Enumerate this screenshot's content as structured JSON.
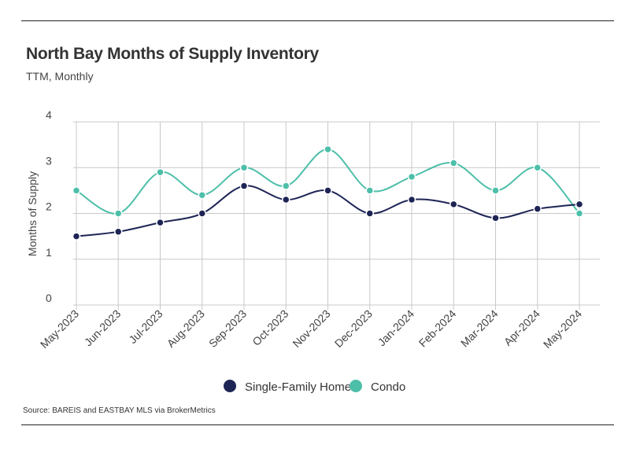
{
  "title": "North Bay Months of Supply Inventory",
  "subtitle": "TTM, Monthly",
  "source": "Source:  BAREIS and EASTBAY MLS via BrokerMetrics",
  "chart_data": {
    "type": "line",
    "title": "North Bay Months of Supply Inventory",
    "subtitle": "TTM, Monthly",
    "xlabel": "",
    "ylabel": "Months of Supply",
    "ylim": [
      0,
      4
    ],
    "yticks": [
      "0",
      "1",
      "2",
      "3",
      "4"
    ],
    "grid": true,
    "smooth": true,
    "legend_position": "bottom",
    "categories": [
      "May-2023",
      "Jun-2023",
      "Jul-2023",
      "Aug-2023",
      "Sep-2023",
      "Oct-2023",
      "Nov-2023",
      "Dec-2023",
      "Jan-2024",
      "Feb-2024",
      "Mar-2024",
      "Apr-2024",
      "May-2024"
    ],
    "series": [
      {
        "name": "Single-Family Home",
        "color": "#1e2555",
        "values": [
          1.5,
          1.6,
          1.8,
          2.0,
          2.6,
          2.3,
          2.5,
          2.0,
          2.3,
          2.2,
          1.9,
          2.1,
          2.2
        ]
      },
      {
        "name": "Condo",
        "color": "#4dbfa9",
        "values": [
          2.5,
          2.0,
          2.9,
          2.4,
          3.0,
          2.6,
          3.4,
          2.5,
          2.8,
          3.1,
          2.5,
          3.0,
          2.0
        ]
      }
    ]
  }
}
